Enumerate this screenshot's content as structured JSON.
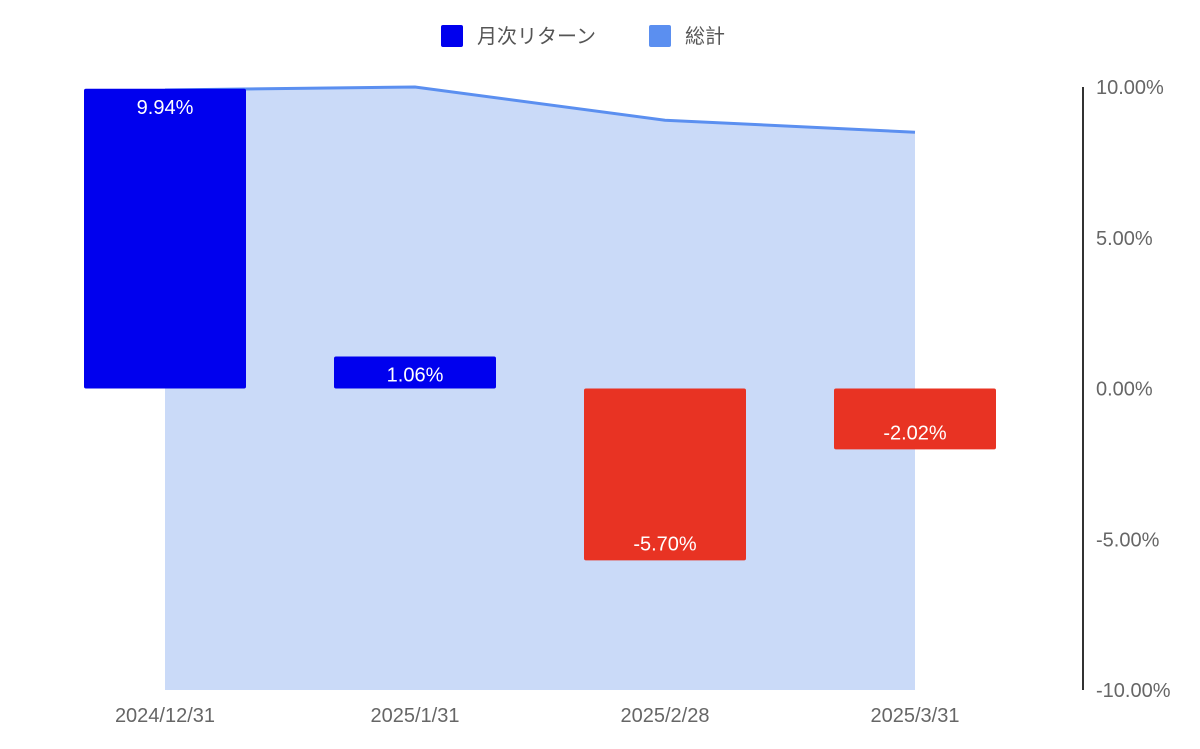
{
  "chart_data": {
    "type": "bar",
    "categories": [
      "2024/12/31",
      "2025/1/31",
      "2025/2/28",
      "2025/3/31"
    ],
    "series": [
      {
        "name": "月次リターン",
        "type": "bar",
        "values": [
          9.94,
          1.06,
          -5.7,
          -2.02
        ],
        "labels": [
          "9.94%",
          "1.06%",
          "-5.70%",
          "-2.02%"
        ],
        "colors": [
          "#0000ee",
          "#0000ee",
          "#e83323",
          "#e83323"
        ]
      },
      {
        "name": "総計",
        "type": "area",
        "values": [
          9.9,
          10.0,
          8.9,
          8.5
        ],
        "color": "#5b8ff0",
        "fill": "#cadaf8"
      }
    ],
    "y_axis": {
      "position": "right",
      "min": -10,
      "max": 10,
      "ticks": [
        10,
        5,
        0,
        -5,
        -10
      ],
      "tick_labels": [
        "10.00%",
        "5.00%",
        "0.00%",
        "-5.00%",
        "-10.00%"
      ]
    },
    "legend": {
      "position": "top",
      "items": [
        {
          "label": "月次リターン",
          "color": "#0000ee"
        },
        {
          "label": "総計",
          "color": "#5b8ff0"
        }
      ]
    },
    "grid": false
  }
}
